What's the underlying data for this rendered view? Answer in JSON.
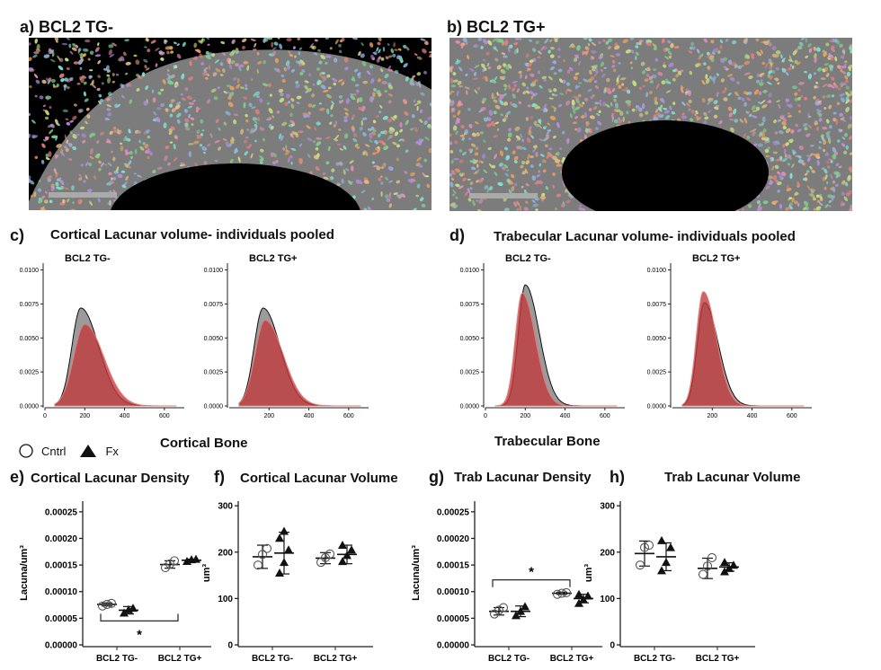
{
  "panels": {
    "a": {
      "label": "a) BCL2 TG-"
    },
    "b": {
      "label": "b) BCL2 TG+"
    },
    "c": {
      "label": "c)",
      "title": "Cortical Lacunar volume- individuals pooled"
    },
    "d": {
      "label": "d)",
      "title": "Trabecular Lacunar volume- individuals pooled"
    },
    "e": {
      "label": "e)",
      "title": "Cortical  Lacunar Density"
    },
    "f": {
      "label": "f)",
      "title": "Cortical Lacunar Volume"
    },
    "g": {
      "label": "g)",
      "title": "Trab Lacunar Density"
    },
    "h": {
      "label": "h)",
      "title": "Trab Lacunar Volume"
    }
  },
  "legend": {
    "cntrl": "Cntrl",
    "fx": "Fx"
  },
  "section_labels": {
    "cortical": "Cortical Bone",
    "trabecular": "Trabecular Bone"
  },
  "colors": {
    "cntrl_fill": "#8a8a8a",
    "fx_fill": "#c0393b",
    "fx_line": "#e07a78"
  },
  "chart_data": [
    {
      "id": "c-tgneg",
      "type": "area",
      "title": "BCL2 TG-",
      "xlim": [
        0,
        700
      ],
      "ylim": [
        0,
        0.0105
      ],
      "xticks": [
        "0",
        "200",
        "400",
        "600"
      ],
      "yticks": [
        "0.0000",
        "0.0025",
        "0.0050",
        "0.0075",
        "0.0100"
      ],
      "series": [
        {
          "name": "Cntrl",
          "peak_x": 180,
          "peak_y": 0.0072,
          "sd_left": 45,
          "sd_right": 90
        },
        {
          "name": "Fx",
          "peak_x": 200,
          "peak_y": 0.006,
          "sd_left": 55,
          "sd_right": 95
        }
      ]
    },
    {
      "id": "c-tgpos",
      "type": "area",
      "title": "BCL2 TG+",
      "xlim": [
        0,
        700
      ],
      "ylim": [
        0,
        0.0105
      ],
      "xticks": [
        "200",
        "400",
        "600"
      ],
      "yticks": [
        "0.0000",
        "0.0025",
        "0.0050",
        "0.0075",
        "0.0100"
      ],
      "series": [
        {
          "name": "Cntrl",
          "peak_x": 170,
          "peak_y": 0.0072,
          "sd_left": 45,
          "sd_right": 85
        },
        {
          "name": "Fx",
          "peak_x": 180,
          "peak_y": 0.0063,
          "sd_left": 50,
          "sd_right": 90
        }
      ]
    },
    {
      "id": "d-tgneg",
      "type": "area",
      "title": "BCL2 TG-",
      "xlim": [
        0,
        700
      ],
      "ylim": [
        0,
        0.0105
      ],
      "xticks": [
        "0",
        "200",
        "400",
        "600"
      ],
      "yticks": [
        "0.0000",
        "0.0025",
        "0.0050",
        "0.0075",
        "0.0100"
      ],
      "series": [
        {
          "name": "Cntrl",
          "peak_x": 200,
          "peak_y": 0.0089,
          "sd_left": 35,
          "sd_right": 70
        },
        {
          "name": "Fx",
          "peak_x": 185,
          "peak_y": 0.0083,
          "sd_left": 35,
          "sd_right": 65
        }
      ]
    },
    {
      "id": "d-tgpos",
      "type": "area",
      "title": "BCL2 TG+",
      "xlim": [
        0,
        700
      ],
      "ylim": [
        0,
        0.0105
      ],
      "xticks": [
        "200",
        "400",
        "600"
      ],
      "yticks": [
        "0.0000",
        "0.0025",
        "0.0050",
        "0.0075",
        "0.0100"
      ],
      "series": [
        {
          "name": "Cntrl",
          "peak_x": 160,
          "peak_y": 0.0076,
          "sd_left": 35,
          "sd_right": 70
        },
        {
          "name": "Fx",
          "peak_x": 155,
          "peak_y": 0.0084,
          "sd_left": 35,
          "sd_right": 65
        }
      ]
    },
    {
      "id": "e",
      "type": "scatter",
      "title": "Cortical  Lacunar Density",
      "ylabel": "Lacuna/um³",
      "ylim": [
        0,
        0.00027
      ],
      "yticks": [
        "0.00000",
        "0.00005",
        "0.00010",
        "0.00015",
        "0.00020",
        "0.00025"
      ],
      "ytick_values": [
        0,
        5e-05,
        0.0001,
        0.00015,
        0.0002,
        0.00025
      ],
      "categories": [
        "BCL2 TG-",
        "BCL2 TG+"
      ],
      "groups": [
        {
          "cat": 0,
          "name": "Cntrl",
          "points": [
            7.3e-05,
            7.6e-05,
            7.8e-05
          ],
          "mean": 7.6e-05,
          "sd": 3e-06
        },
        {
          "cat": 0,
          "name": "Fx",
          "points": [
            6e-05,
            6.6e-05,
            6.9e-05
          ],
          "mean": 6.5e-05,
          "sd": 7e-06
        },
        {
          "cat": 1,
          "name": "Cntrl",
          "points": [
            0.000145,
            0.000152,
            0.000158
          ],
          "mean": 0.000151,
          "sd": 7e-06
        },
        {
          "cat": 1,
          "name": "Fx",
          "points": [
            0.000157,
            0.00016,
            0.000161
          ],
          "mean": 0.000159,
          "sd": 2e-06
        }
      ],
      "significance": {
        "label": "*",
        "type": "under",
        "y": 4.5e-05
      }
    },
    {
      "id": "f",
      "type": "scatter",
      "title": "Cortical Lacunar Volume",
      "ylabel": "um³",
      "ylim": [
        0,
        310
      ],
      "yticks": [
        "0",
        "100",
        "200",
        "300"
      ],
      "ytick_values": [
        0,
        100,
        200,
        300
      ],
      "categories": [
        "BCL2 TG-",
        "BCL2 TG+"
      ],
      "groups": [
        {
          "cat": 0,
          "name": "Cntrl",
          "points": [
            172,
            195,
            208
          ],
          "mean": 190,
          "sd": 25
        },
        {
          "cat": 0,
          "name": "Fx",
          "points": [
            155,
            178,
            205,
            230,
            245
          ],
          "mean": 198,
          "sd": 45
        },
        {
          "cat": 1,
          "name": "Cntrl",
          "points": [
            178,
            188,
            196
          ],
          "mean": 187,
          "sd": 12
        },
        {
          "cat": 1,
          "name": "Fx",
          "points": [
            180,
            193,
            205,
            215
          ],
          "mean": 195,
          "sd": 20
        }
      ]
    },
    {
      "id": "g",
      "type": "scatter",
      "title": "Trab Lacunar Density",
      "ylabel": "Lacuna/um³",
      "ylim": [
        0,
        0.00027
      ],
      "yticks": [
        "0.00000",
        "0.00005",
        "0.00010",
        "0.00015",
        "0.00020",
        "0.00025"
      ],
      "ytick_values": [
        0,
        5e-05,
        0.0001,
        0.00015,
        0.0002,
        0.00025
      ],
      "categories": [
        "BCL2 TG-",
        "BCL2 TG+"
      ],
      "groups": [
        {
          "cat": 0,
          "name": "Cntrl",
          "points": [
            5.8e-05,
            6.5e-05,
            7e-05
          ],
          "mean": 6.3e-05,
          "sd": 7e-06
        },
        {
          "cat": 0,
          "name": "Fx",
          "points": [
            5.5e-05,
            6.3e-05,
            7.2e-05
          ],
          "mean": 6.3e-05,
          "sd": 1e-05
        },
        {
          "cat": 1,
          "name": "Cntrl",
          "points": [
            9.5e-05,
            9.7e-05,
            9.8e-05
          ],
          "mean": 9.7e-05,
          "sd": 2e-06
        },
        {
          "cat": 1,
          "name": "Fx",
          "points": [
            7.8e-05,
            8.5e-05,
            9.2e-05,
            9.5e-05
          ],
          "mean": 8.7e-05,
          "sd": 8e-06
        }
      ],
      "significance": {
        "label": "*",
        "type": "over",
        "y": 0.000122
      }
    },
    {
      "id": "h",
      "type": "scatter",
      "title": "Trab Lacunar Volume",
      "ylabel": "um³",
      "ylim": [
        0,
        310
      ],
      "yticks": [
        "0",
        "100",
        "200",
        "300"
      ],
      "ytick_values": [
        0,
        100,
        200,
        300
      ],
      "categories": [
        "BCL2 TG-",
        "BCL2 TG+"
      ],
      "groups": [
        {
          "cat": 0,
          "name": "Cntrl",
          "points": [
            172,
            210,
            215
          ],
          "mean": 197,
          "sd": 27
        },
        {
          "cat": 0,
          "name": "Fx",
          "points": [
            160,
            178,
            210,
            225
          ],
          "mean": 190,
          "sd": 30
        },
        {
          "cat": 1,
          "name": "Cntrl",
          "points": [
            152,
            170,
            188
          ],
          "mean": 165,
          "sd": 22
        },
        {
          "cat": 1,
          "name": "Fx",
          "points": [
            158,
            165,
            172,
            178
          ],
          "mean": 168,
          "sd": 9
        }
      ]
    }
  ]
}
